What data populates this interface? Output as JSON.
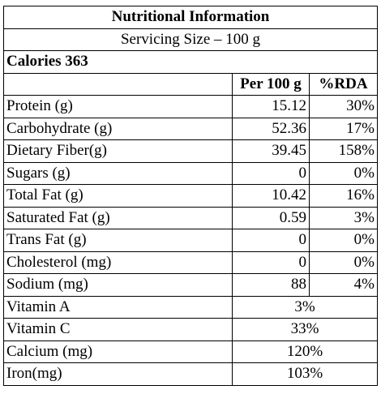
{
  "title": "Nutritional Information",
  "serving_size": "Servicing Size – 100 g",
  "calories": "Calories 363",
  "columns": {
    "per_100g": "Per 100 g",
    "rda": "%RDA"
  },
  "nutrients": [
    {
      "name": "Protein (g)",
      "per_100g": "15.12",
      "rda": "30%"
    },
    {
      "name": "Carbohydrate (g)",
      "per_100g": "52.36",
      "rda": "17%"
    },
    {
      "name": "Dietary Fiber(g)",
      "per_100g": "39.45",
      "rda": "158%"
    },
    {
      "name": "Sugars (g)",
      "per_100g": "0",
      "rda": "0%"
    },
    {
      "name": "Total Fat (g)",
      "per_100g": "10.42",
      "rda": "16%"
    },
    {
      "name": "Saturated Fat (g)",
      "per_100g": "0.59",
      "rda": "3%"
    },
    {
      "name": "Trans Fat (g)",
      "per_100g": "0",
      "rda": "0%"
    },
    {
      "name": "Cholesterol (mg)",
      "per_100g": "0",
      "rda": "0%"
    },
    {
      "name": "Sodium (mg)",
      "per_100g": "88",
      "rda": "4%"
    }
  ],
  "vitamins_minerals": [
    {
      "name": "Vitamin A",
      "rda": "3%"
    },
    {
      "name": "Vitamin C",
      "rda": "33%"
    },
    {
      "name": "Calcium (mg)",
      "rda": "120%"
    },
    {
      "name": "Iron(mg)",
      "rda": "103%"
    }
  ]
}
